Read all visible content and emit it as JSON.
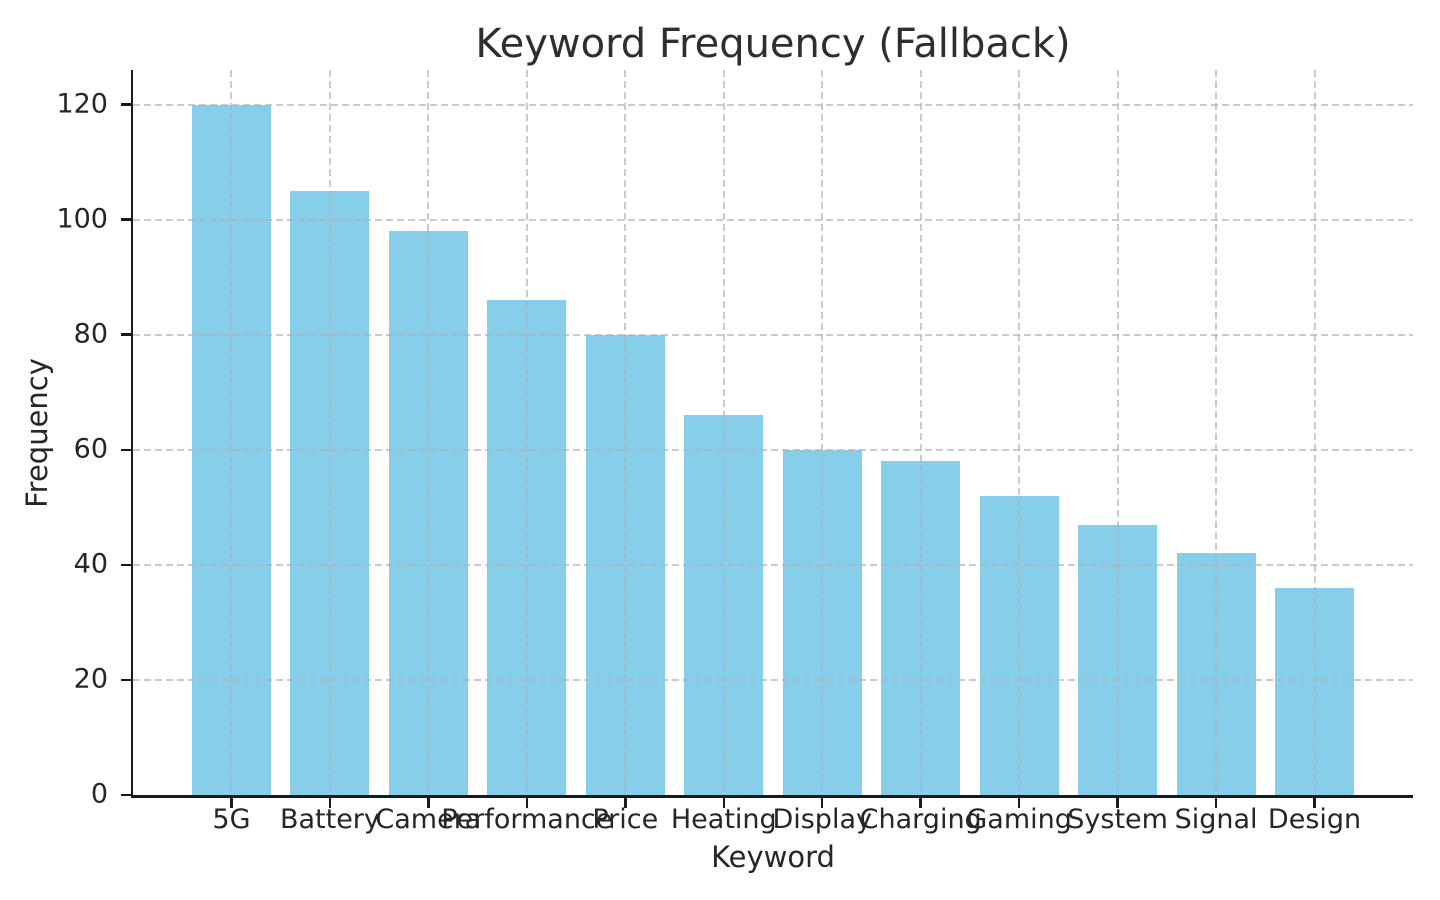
{
  "chart_data": {
    "type": "bar",
    "title": "Keyword Frequency (Fallback)",
    "xlabel": "Keyword",
    "ylabel": "Frequency",
    "categories": [
      "5G",
      "Battery",
      "Camera",
      "Performance",
      "Price",
      "Heating",
      "Display",
      "Charging",
      "Gaming",
      "System",
      "Signal",
      "Design"
    ],
    "values": [
      120,
      105,
      98,
      86,
      80,
      66,
      60,
      58,
      52,
      47,
      42,
      36
    ],
    "yticks": [
      0,
      20,
      40,
      60,
      80,
      100,
      120
    ],
    "ylim": [
      0,
      126
    ],
    "bar_color": "#87CEEB",
    "grid": true,
    "grid_style": "dashed",
    "grid_color": "#afafaf",
    "grid_above_bars": true,
    "legend": "none",
    "bar_width_fraction": 0.8,
    "text_color": "#262626",
    "spine_color": "#1a1a1a"
  }
}
